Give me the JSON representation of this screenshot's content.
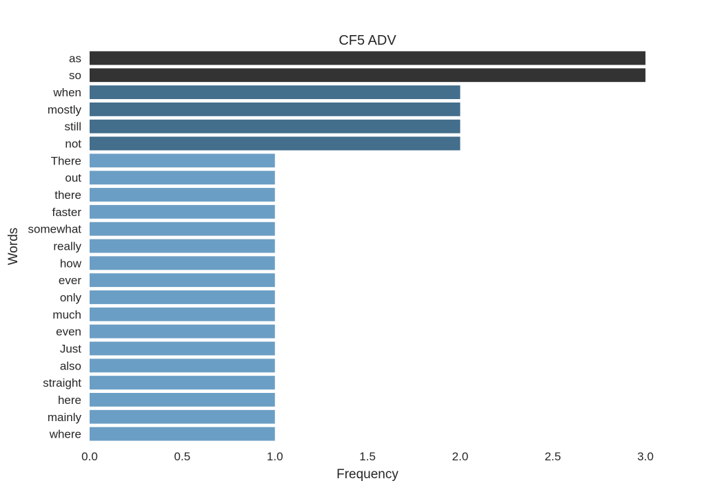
{
  "chart_data": {
    "type": "bar",
    "orientation": "horizontal",
    "title": "CF5 ADV",
    "xlabel": "Frequency",
    "ylabel": "Words",
    "xlim": [
      0,
      3.2
    ],
    "xticks": [
      "0.0",
      "0.5",
      "1.0",
      "1.5",
      "2.0",
      "2.5",
      "3.0"
    ],
    "grid": false,
    "categories": [
      "as",
      "so",
      "when",
      "mostly",
      "still",
      "not",
      "There",
      "out",
      "there",
      "faster",
      "somewhat",
      "really",
      "how",
      "ever",
      "only",
      "much",
      "even",
      "Just",
      "also",
      "straight",
      "here",
      "mainly",
      "where"
    ],
    "values": [
      3,
      3,
      2,
      2,
      2,
      2,
      1,
      1,
      1,
      1,
      1,
      1,
      1,
      1,
      1,
      1,
      1,
      1,
      1,
      1,
      1,
      1,
      1
    ],
    "colors": {
      "3": "#333333",
      "2": "#436e8c",
      "1": "#6b9ec4"
    }
  }
}
